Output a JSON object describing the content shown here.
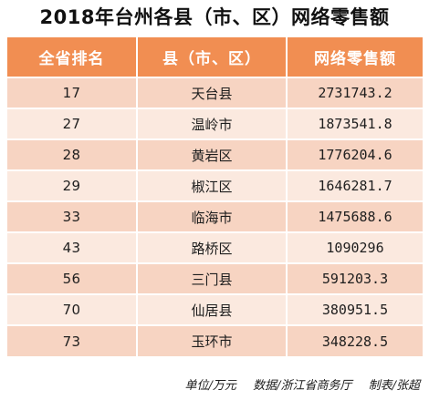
{
  "title": "2018年台州各县（市、区）网络零售额",
  "table": {
    "headers": [
      "全省排名",
      "县（市、区）",
      "网络零售额"
    ],
    "rows": [
      {
        "rank": "17",
        "county": "天台县",
        "value": "2731743.2"
      },
      {
        "rank": "27",
        "county": "温岭市",
        "value": "1873541.8"
      },
      {
        "rank": "28",
        "county": "黄岩区",
        "value": "1776204.6"
      },
      {
        "rank": "29",
        "county": "椒江区",
        "value": "1646281.7"
      },
      {
        "rank": "33",
        "county": "临海市",
        "value": "1475688.6"
      },
      {
        "rank": "43",
        "county": "路桥区",
        "value": "1090296"
      },
      {
        "rank": "56",
        "county": "三门县",
        "value": "591203.3"
      },
      {
        "rank": "70",
        "county": "仙居县",
        "value": "380951.5"
      },
      {
        "rank": "73",
        "county": "玉环市",
        "value": "348228.5"
      }
    ]
  },
  "footer": {
    "unit": "单位/万元",
    "source": "数据/浙江省商务厅",
    "credit": "制表/张超"
  },
  "colors": {
    "header_bg": "#f18e52",
    "row_dark": "#f7d4c2",
    "row_light": "#fbe9df"
  }
}
